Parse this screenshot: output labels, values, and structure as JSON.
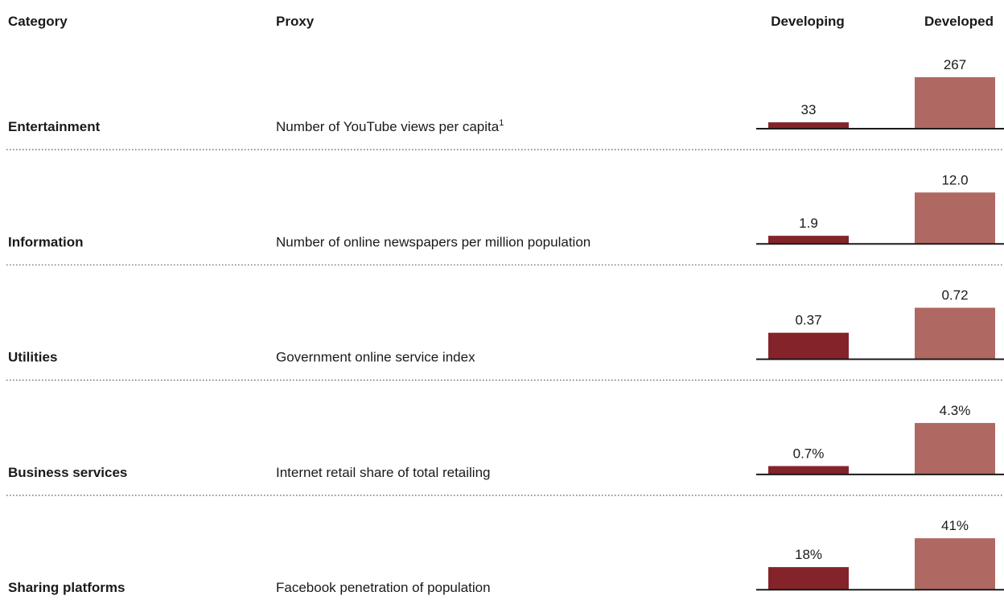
{
  "header": {
    "category": "Category",
    "proxy": "Proxy",
    "developing": "Developing",
    "developed": "Developed"
  },
  "rows": [
    {
      "category": "Entertainment",
      "proxy": "Number of YouTube views per capita",
      "footnote": "1",
      "developing": {
        "value": 33,
        "label": "33"
      },
      "developed": {
        "value": 267,
        "label": "267"
      }
    },
    {
      "category": "Information",
      "proxy": "Number of online newspapers per million population",
      "developing": {
        "value": 1.9,
        "label": "1.9"
      },
      "developed": {
        "value": 12.0,
        "label": "12.0"
      }
    },
    {
      "category": "Utilities",
      "proxy": "Government online service index",
      "developing": {
        "value": 0.37,
        "label": "0.37"
      },
      "developed": {
        "value": 0.72,
        "label": "0.72"
      }
    },
    {
      "category": "Business services",
      "proxy": "Internet retail share of total retailing",
      "developing": {
        "value": 0.7,
        "label": "0.7%"
      },
      "developed": {
        "value": 4.3,
        "label": "4.3%"
      }
    },
    {
      "category": "Sharing platforms",
      "proxy": "Facebook penetration of population",
      "developing": {
        "value": 18,
        "label": "18%"
      },
      "developed": {
        "value": 41,
        "label": "41%"
      }
    }
  ],
  "colors": {
    "developing": "#84232a",
    "developed": "#b06862",
    "header": "#8a2330"
  }
}
